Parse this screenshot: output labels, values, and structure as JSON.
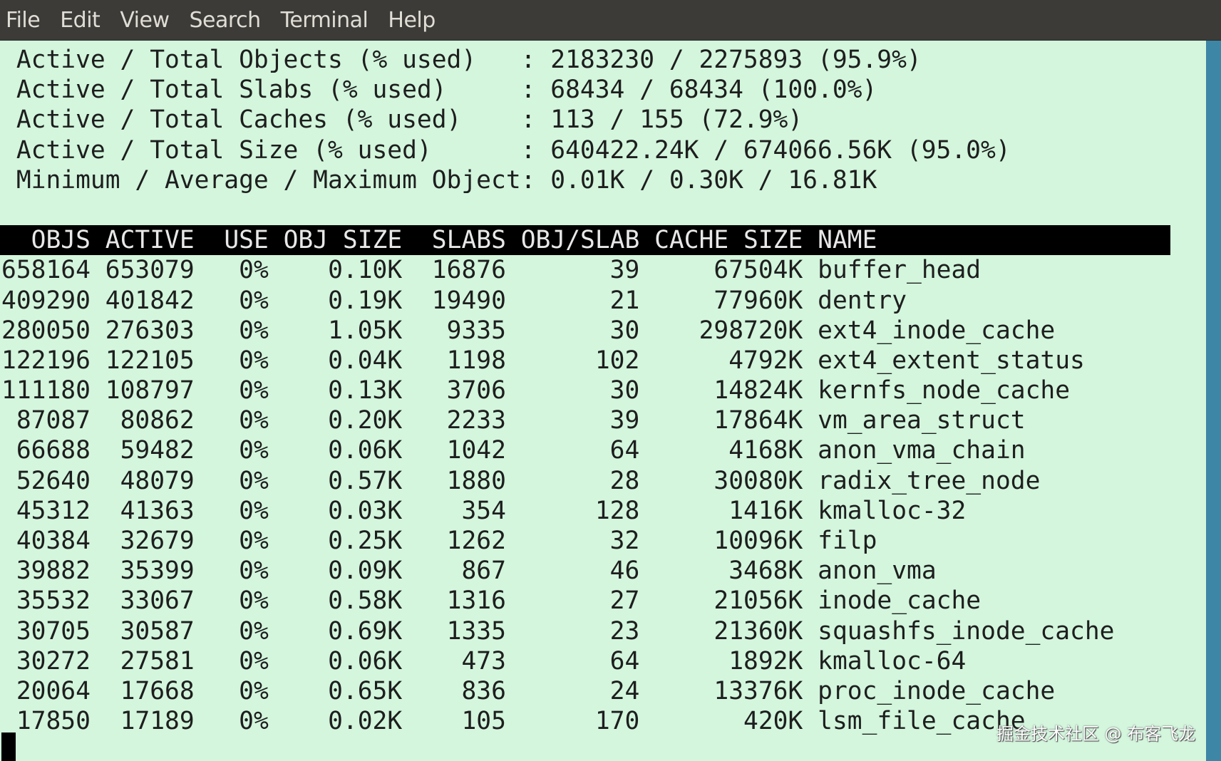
{
  "menu": [
    "File",
    "Edit",
    "View",
    "Search",
    "Terminal",
    "Help"
  ],
  "stats": [
    {
      "label": "Active / Total Objects (% used)",
      "value": "2183230 / 2275893 (95.9%)"
    },
    {
      "label": "Active / Total Slabs (% used)",
      "value": "68434 / 68434 (100.0%)"
    },
    {
      "label": "Active / Total Caches (% used)",
      "value": "113 / 155 (72.9%)"
    },
    {
      "label": "Active / Total Size (% used)",
      "value": "640422.24K / 674066.56K (95.0%)"
    },
    {
      "label": "Minimum / Average / Maximum Object",
      "value": "0.01K / 0.30K / 16.81K"
    }
  ],
  "columns": [
    "OBJS",
    "ACTIVE",
    "USE",
    "OBJ SIZE",
    "SLABS",
    "OBJ/SLAB",
    "CACHE SIZE",
    "NAME"
  ],
  "rows": [
    [
      "658164",
      "653079",
      "0%",
      "0.10K",
      "16876",
      "39",
      "67504K",
      "buffer_head"
    ],
    [
      "409290",
      "401842",
      "0%",
      "0.19K",
      "19490",
      "21",
      "77960K",
      "dentry"
    ],
    [
      "280050",
      "276303",
      "0%",
      "1.05K",
      "9335",
      "30",
      "298720K",
      "ext4_inode_cache"
    ],
    [
      "122196",
      "122105",
      "0%",
      "0.04K",
      "1198",
      "102",
      "4792K",
      "ext4_extent_status"
    ],
    [
      "111180",
      "108797",
      "0%",
      "0.13K",
      "3706",
      "30",
      "14824K",
      "kernfs_node_cache"
    ],
    [
      "87087",
      "80862",
      "0%",
      "0.20K",
      "2233",
      "39",
      "17864K",
      "vm_area_struct"
    ],
    [
      "66688",
      "59482",
      "0%",
      "0.06K",
      "1042",
      "64",
      "4168K",
      "anon_vma_chain"
    ],
    [
      "52640",
      "48079",
      "0%",
      "0.57K",
      "1880",
      "28",
      "30080K",
      "radix_tree_node"
    ],
    [
      "45312",
      "41363",
      "0%",
      "0.03K",
      "354",
      "128",
      "1416K",
      "kmalloc-32"
    ],
    [
      "40384",
      "32679",
      "0%",
      "0.25K",
      "1262",
      "32",
      "10096K",
      "filp"
    ],
    [
      "39882",
      "35399",
      "0%",
      "0.09K",
      "867",
      "46",
      "3468K",
      "anon_vma"
    ],
    [
      "35532",
      "33067",
      "0%",
      "0.58K",
      "1316",
      "27",
      "21056K",
      "inode_cache"
    ],
    [
      "30705",
      "30587",
      "0%",
      "0.69K",
      "1335",
      "23",
      "21360K",
      "squashfs_inode_cache"
    ],
    [
      "30272",
      "27581",
      "0%",
      "0.06K",
      "473",
      "64",
      "1892K",
      "kmalloc-64"
    ],
    [
      "20064",
      "17668",
      "0%",
      "0.65K",
      "836",
      "24",
      "13376K",
      "proc_inode_cache"
    ],
    [
      "17850",
      "17189",
      "0%",
      "0.02K",
      "105",
      "170",
      "420K",
      "lsm_file_cache"
    ]
  ],
  "watermark": "掘金技术社区 @ 布客飞龙",
  "colors": {
    "background": "#d3f6dd",
    "menubar": "#3c3b37",
    "header": "#000000",
    "scrollbar": "#3e86a6"
  }
}
